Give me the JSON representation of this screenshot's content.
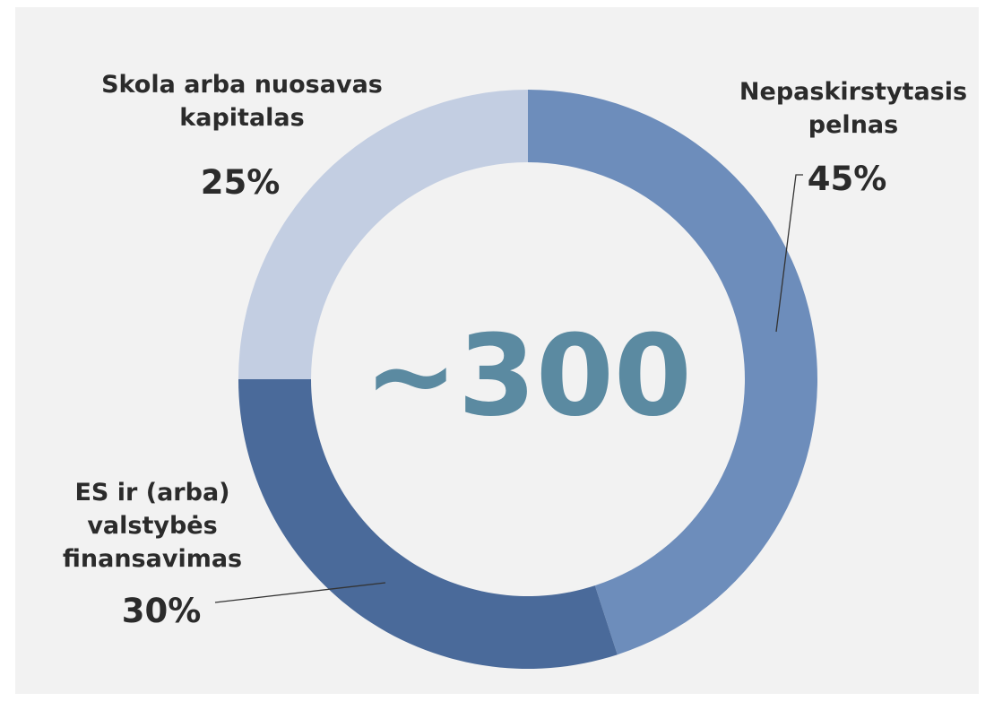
{
  "chart_data": {
    "type": "donut",
    "annotation": "~300",
    "categories": [
      "Nepaskirstytasis pelnas",
      "ES ir (arba) valstybės finansavimas",
      "Skola arba nuosavas kapitalas"
    ],
    "values": [
      45,
      30,
      25
    ],
    "value_labels": [
      "45%",
      "30%",
      "25%"
    ],
    "colors": [
      "#6d8dbb",
      "#4a6a9a",
      "#c3cee2"
    ]
  }
}
